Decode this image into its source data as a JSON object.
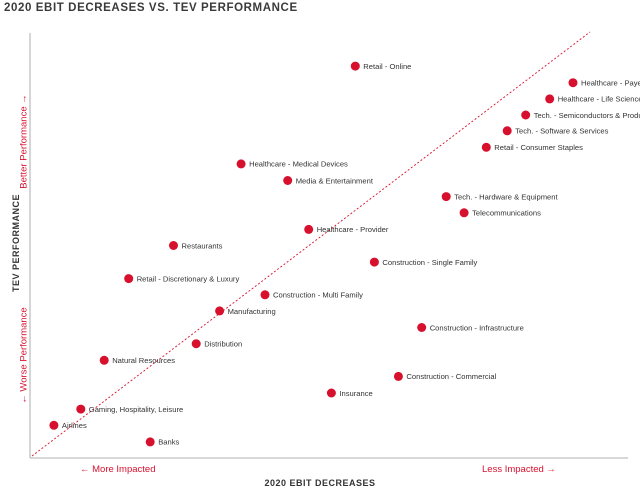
{
  "chart_data": {
    "type": "scatter",
    "title": "2020 EBIT DECREASES VS. TEV PERFORMANCE",
    "xlabel": "2020 EBIT DECREASES",
    "ylabel": "TEV PERFORMANCE",
    "x_low_note": "← More Impacted",
    "x_high_note": "Less Impacted →",
    "y_high_note": "Better Performance →",
    "y_low_note": "← Worse Performance",
    "xlim": [
      0,
      100
    ],
    "ylim": [
      0,
      100
    ],
    "grid": false,
    "diagonal_reference_line": true,
    "point_color": "#d7102e",
    "points": [
      {
        "label": "Retail - Online",
        "x": 54.4,
        "y": 92.2
      },
      {
        "label": "Healthcare - Payer",
        "x": 90.8,
        "y": 88.3
      },
      {
        "label": "Healthcare - Life Sciences",
        "x": 86.9,
        "y": 84.5
      },
      {
        "label": "Tech. - Semiconductors & Products",
        "x": 82.9,
        "y": 80.7
      },
      {
        "label": "Tech. - Software & Services",
        "x": 79.8,
        "y": 77.0
      },
      {
        "label": "Retail - Consumer Staples",
        "x": 76.3,
        "y": 73.1
      },
      {
        "label": "Healthcare - Medical Devices",
        "x": 35.3,
        "y": 69.2
      },
      {
        "label": "Media & Entertainment",
        "x": 43.1,
        "y": 65.3
      },
      {
        "label": "Tech. - Hardware & Equipment",
        "x": 69.6,
        "y": 61.5
      },
      {
        "label": "Telecommunications",
        "x": 72.6,
        "y": 57.7
      },
      {
        "label": "Healthcare - Provider",
        "x": 46.6,
        "y": 53.8
      },
      {
        "label": "Restaurants",
        "x": 24.0,
        "y": 50.0
      },
      {
        "label": "Construction - Single Family",
        "x": 57.6,
        "y": 46.1
      },
      {
        "label": "Retail - Discretionary & Luxury",
        "x": 16.5,
        "y": 42.2
      },
      {
        "label": "Construction - Multi Family",
        "x": 39.3,
        "y": 38.4
      },
      {
        "label": "Manufacturing",
        "x": 31.7,
        "y": 34.6
      },
      {
        "label": "Construction - Infrastructure",
        "x": 65.5,
        "y": 30.7
      },
      {
        "label": "Distribution",
        "x": 27.8,
        "y": 26.9
      },
      {
        "label": "Natural Resources",
        "x": 12.4,
        "y": 23.0
      },
      {
        "label": "Construction - Commercial",
        "x": 61.6,
        "y": 19.2
      },
      {
        "label": "Insurance",
        "x": 50.4,
        "y": 15.3
      },
      {
        "label": "Gaming, Hospitality, Leisure",
        "x": 8.5,
        "y": 11.5
      },
      {
        "label": "Airlines",
        "x": 4.0,
        "y": 7.7
      },
      {
        "label": "Banks",
        "x": 20.1,
        "y": 3.8
      }
    ]
  }
}
